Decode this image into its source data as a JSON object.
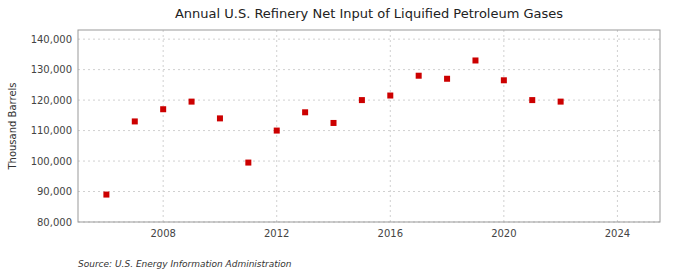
{
  "chart_data": {
    "type": "scatter",
    "title": "Annual U.S. Refinery Net Input of Liquified Petroleum Gases",
    "y_label": "Thousand Barrels",
    "source": "Source: U.S. Energy Information Administration",
    "x": [
      2006,
      2007,
      2008,
      2009,
      2010,
      2011,
      2012,
      2013,
      2014,
      2015,
      2016,
      2017,
      2018,
      2019,
      2020,
      2021,
      2022
    ],
    "values": [
      89000,
      113000,
      117000,
      119500,
      114000,
      99500,
      110000,
      116000,
      112500,
      120000,
      121500,
      128000,
      127000,
      133000,
      126500,
      120000,
      119500
    ],
    "color": "#CC0000",
    "marker": "square",
    "xlim": [
      2005.0,
      2025.5
    ],
    "xticks": [
      2008,
      2012,
      2016,
      2020,
      2024
    ],
    "ylim": [
      80000,
      143000
    ],
    "yticks": [
      {
        "value": 80000,
        "label": "80,000"
      },
      {
        "value": 90000,
        "label": "90,000"
      },
      {
        "value": 100000,
        "label": "100,000"
      },
      {
        "value": 110000,
        "label": "110,000"
      },
      {
        "value": 120000,
        "label": "120,000"
      },
      {
        "value": 130000,
        "label": "130,000"
      },
      {
        "value": 140000,
        "label": "140,000"
      }
    ],
    "grid": true
  }
}
